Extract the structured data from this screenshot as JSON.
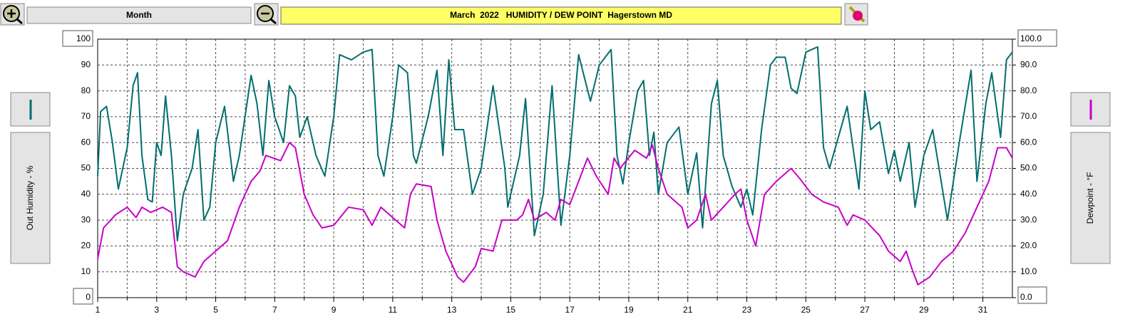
{
  "toolbar": {
    "period": "Month"
  },
  "chart_data": {
    "type": "line",
    "title": "March  2022   HUMIDITY / DEW POINT  Hagerstown MD",
    "ylabel": "Out Humidity - %",
    "y2label": "Dewpoint - °F",
    "xlim": [
      1,
      32
    ],
    "xticks": [
      1,
      3,
      5,
      7,
      9,
      11,
      13,
      15,
      17,
      19,
      21,
      23,
      25,
      27,
      29,
      31
    ],
    "xticks_minor": [
      2,
      4,
      6,
      8,
      10,
      12,
      14,
      16,
      18,
      20,
      22,
      24,
      26,
      28,
      30
    ],
    "ylim": [
      0,
      100
    ],
    "yticks": [
      0,
      10,
      20,
      30,
      40,
      50,
      60,
      70,
      80,
      90,
      100
    ],
    "y2lim": [
      0,
      100
    ],
    "y2ticks": [
      {
        "value": 0,
        "label": "0.0"
      },
      {
        "value": 10,
        "label": "10.0"
      },
      {
        "value": 20,
        "label": "20.0"
      },
      {
        "value": 30,
        "label": "30.0"
      },
      {
        "value": 40,
        "label": "40.0"
      },
      {
        "value": 50,
        "label": "50.0"
      },
      {
        "value": 60,
        "label": "60.0"
      },
      {
        "value": 70,
        "label": "70.0"
      },
      {
        "value": 80,
        "label": "80.0"
      },
      {
        "value": 90,
        "label": "90.0"
      },
      {
        "value": 100,
        "label": "100.0"
      }
    ],
    "grid": true,
    "series": [
      {
        "color": "#006e6e",
        "axis": "y",
        "x": [
          1.0,
          1.1,
          1.3,
          1.5,
          1.7,
          2.0,
          2.2,
          2.35,
          2.5,
          2.7,
          2.85,
          3.0,
          3.15,
          3.3,
          3.5,
          3.7,
          3.9,
          4.2,
          4.4,
          4.6,
          4.8,
          5.0,
          5.3,
          5.6,
          5.8,
          6.2,
          6.4,
          6.6,
          6.8,
          7.0,
          7.3,
          7.5,
          7.7,
          7.85,
          8.1,
          8.4,
          8.7,
          9.0,
          9.2,
          9.6,
          10.0,
          10.3,
          10.5,
          10.7,
          11.0,
          11.2,
          11.5,
          11.7,
          11.8,
          12.2,
          12.5,
          12.7,
          12.9,
          13.1,
          13.4,
          13.7,
          14.0,
          14.4,
          14.8,
          14.9,
          15.3,
          15.5,
          15.8,
          16.1,
          16.4,
          16.7,
          17.0,
          17.3,
          17.5,
          17.7,
          18.0,
          18.4,
          18.6,
          18.8,
          19.0,
          19.3,
          19.5,
          19.7,
          19.85,
          20.0,
          20.3,
          20.7,
          21.0,
          21.3,
          21.5,
          21.8,
          22.0,
          22.2,
          22.5,
          22.8,
          23.0,
          23.2,
          23.5,
          23.8,
          24.0,
          24.3,
          24.5,
          24.7,
          25.0,
          25.4,
          25.6,
          25.8,
          26.1,
          26.4,
          26.8,
          27.0,
          27.2,
          27.5,
          27.8,
          28.0,
          28.2,
          28.5,
          28.7,
          29.0,
          29.3,
          29.8,
          30.2,
          30.6,
          30.8,
          31.1,
          31.3,
          31.6,
          31.8,
          32.0
        ],
        "values": [
          47,
          72,
          74,
          60,
          42,
          58,
          82,
          87,
          55,
          38,
          37,
          60,
          55,
          78,
          55,
          22,
          40,
          50,
          65,
          30,
          35,
          60,
          74,
          45,
          55,
          86,
          75,
          55,
          84,
          70,
          60,
          82,
          78,
          62,
          70,
          55,
          47,
          70,
          94,
          92,
          95,
          96,
          55,
          47,
          70,
          90,
          87,
          55,
          52,
          70,
          88,
          55,
          92,
          65,
          65,
          40,
          50,
          82,
          50,
          35,
          55,
          77,
          24,
          40,
          82,
          28,
          55,
          94,
          85,
          76,
          90,
          96,
          55,
          44,
          60,
          80,
          84,
          55,
          64,
          40,
          60,
          66,
          40,
          56,
          27,
          75,
          84,
          55,
          43,
          35,
          42,
          32,
          65,
          90,
          93,
          93,
          81,
          79,
          95,
          97,
          58,
          50,
          62,
          74,
          42,
          80,
          65,
          68,
          48,
          57,
          45,
          60,
          35,
          55,
          65,
          30,
          60,
          88,
          45,
          75,
          87,
          62,
          92,
          95
        ]
      },
      {
        "color": "#c800c8",
        "axis": "y2",
        "x": [
          1.0,
          1.2,
          1.6,
          2.0,
          2.3,
          2.5,
          2.8,
          3.2,
          3.5,
          3.7,
          3.9,
          4.3,
          4.6,
          5.0,
          5.4,
          5.8,
          6.2,
          6.5,
          6.7,
          7.2,
          7.5,
          7.7,
          8.0,
          8.3,
          8.6,
          9.0,
          9.5,
          10.0,
          10.3,
          10.6,
          11.0,
          11.4,
          11.6,
          11.8,
          12.3,
          12.5,
          12.8,
          13.2,
          13.4,
          13.8,
          14.0,
          14.4,
          14.7,
          15.2,
          15.4,
          15.6,
          15.8,
          16.2,
          16.5,
          16.7,
          17.0,
          17.3,
          17.6,
          17.9,
          18.3,
          18.5,
          18.7,
          19.2,
          19.6,
          19.8,
          20.0,
          20.3,
          20.8,
          21.0,
          21.3,
          21.6,
          21.8,
          22.2,
          22.6,
          22.8,
          23.0,
          23.3,
          23.6,
          24.0,
          24.5,
          24.8,
          25.2,
          25.6,
          26.1,
          26.4,
          26.6,
          27.0,
          27.5,
          27.8,
          28.2,
          28.4,
          28.6,
          28.8,
          29.2,
          29.6,
          30.0,
          30.4,
          30.8,
          31.2,
          31.5,
          31.8,
          32.0
        ],
        "values": [
          15,
          27,
          32,
          35,
          31,
          35,
          33,
          35,
          33,
          12,
          10,
          8,
          14,
          18,
          22,
          35,
          45,
          49,
          55,
          53,
          60,
          58,
          40,
          32,
          27,
          28,
          35,
          34,
          28,
          35,
          31,
          27,
          40,
          44,
          43,
          30,
          18,
          8,
          6,
          12,
          19,
          18,
          30,
          30,
          32,
          38,
          30,
          33,
          30,
          38,
          36,
          45,
          54,
          47,
          40,
          54,
          50,
          57,
          54,
          59,
          50,
          40,
          35,
          27,
          30,
          40,
          30,
          35,
          40,
          42,
          30,
          20,
          40,
          45,
          50,
          46,
          40,
          37,
          35,
          28,
          32,
          30,
          24,
          18,
          14,
          18,
          11,
          5,
          8,
          14,
          18,
          25,
          35,
          45,
          58,
          58,
          54
        ]
      }
    ]
  }
}
